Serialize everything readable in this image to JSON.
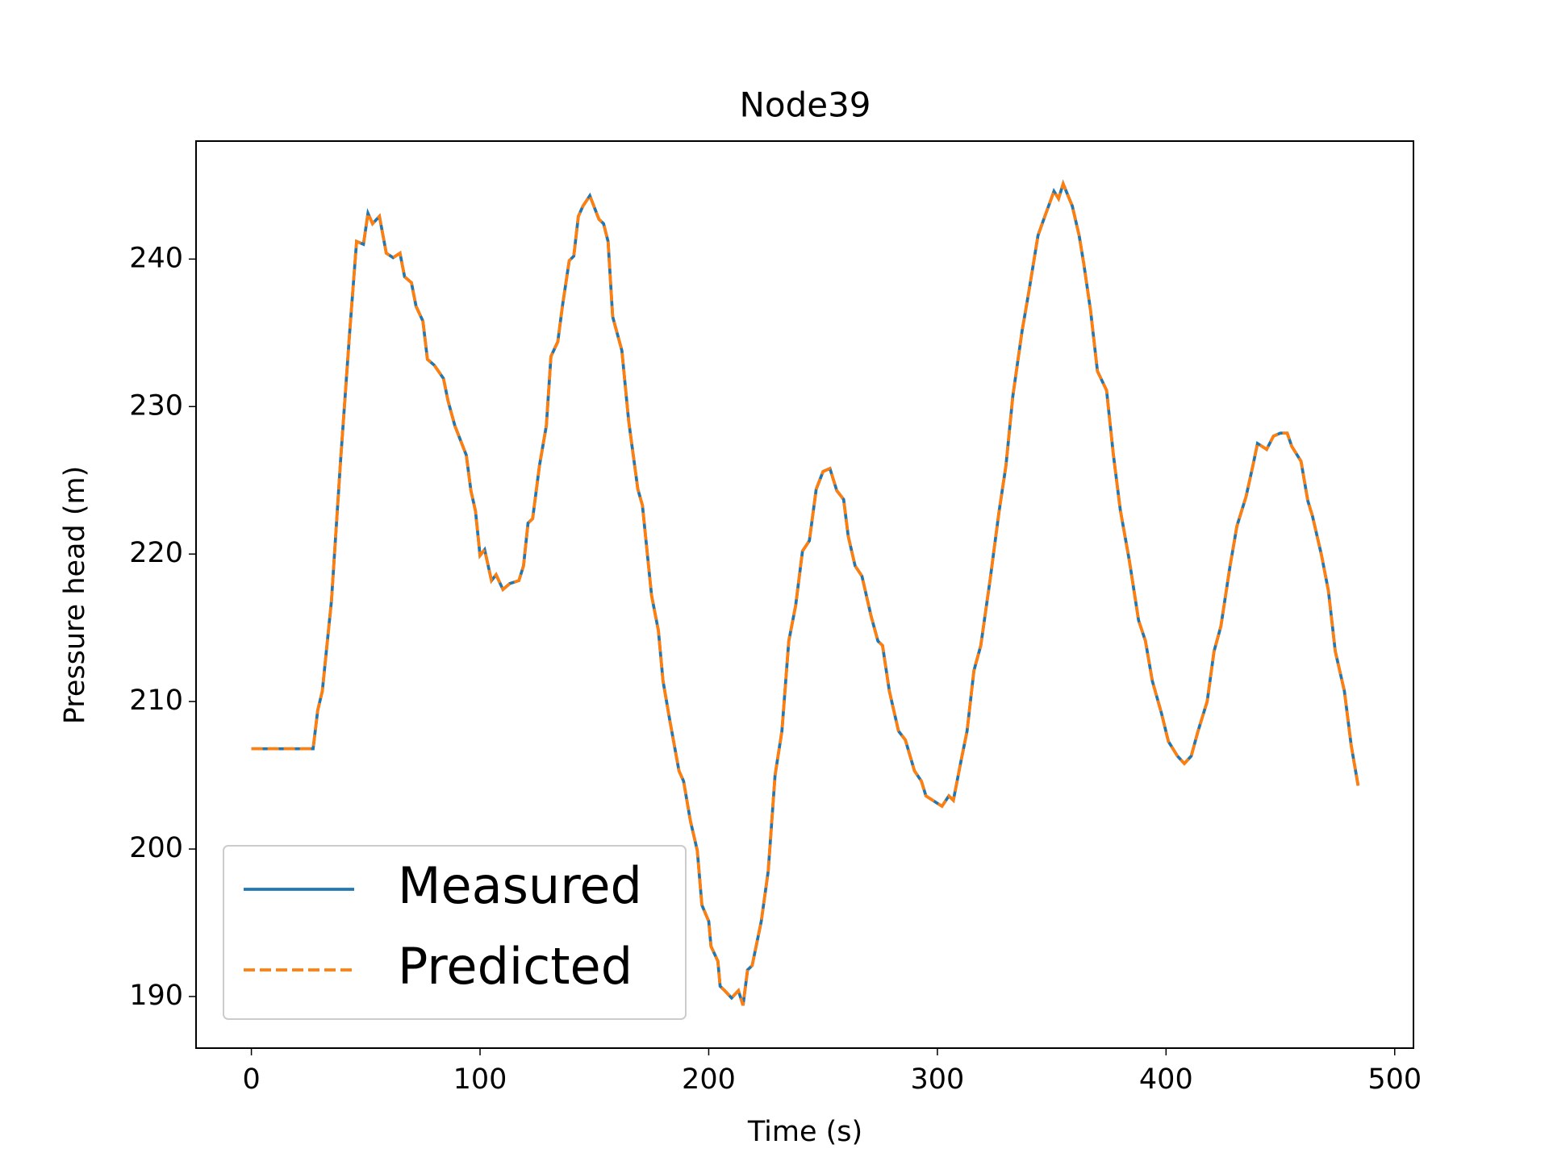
{
  "chart_data": {
    "type": "line",
    "title": "Node39",
    "xlabel": "Time (s)",
    "ylabel": "Pressure head (m)",
    "x": [
      0,
      27,
      29,
      31,
      35,
      39,
      43,
      46,
      49,
      51,
      53,
      56,
      59,
      62,
      65,
      67,
      70,
      72,
      75,
      77,
      80,
      84,
      86,
      89,
      94,
      96,
      98,
      100,
      102,
      105,
      107,
      110,
      113,
      117,
      119,
      121,
      123,
      126,
      129,
      131,
      134,
      136,
      139,
      141,
      143,
      145,
      148,
      152,
      154,
      156,
      158,
      162,
      165,
      169,
      171,
      175,
      178,
      180,
      183,
      187,
      189,
      192,
      195,
      197,
      200,
      201,
      204,
      205,
      207,
      210,
      213,
      215,
      217,
      219,
      223,
      226,
      229,
      232,
      235,
      238,
      241,
      244,
      247,
      250,
      253,
      256,
      259,
      261,
      264,
      267,
      271,
      274,
      276,
      279,
      283,
      286,
      290,
      293,
      295,
      298,
      302,
      305,
      307,
      310,
      313,
      316,
      319,
      323,
      327,
      330,
      333,
      337,
      340,
      344,
      347,
      351,
      353,
      355,
      359,
      362,
      364,
      367,
      370,
      374,
      377,
      380,
      384,
      388,
      391,
      394,
      398,
      401,
      405,
      408,
      411,
      414,
      418,
      421,
      424,
      428,
      431,
      435,
      438,
      440,
      444,
      447,
      450,
      453,
      455,
      459,
      462,
      464,
      468,
      471,
      474,
      478,
      481,
      484
    ],
    "series": [
      {
        "name": "Measured",
        "color": "#1f77b4",
        "dash": false,
        "values": [
          206.8,
          206.8,
          209.4,
          210.7,
          216.8,
          226.3,
          235.1,
          241.2,
          241.0,
          243.1,
          242.4,
          242.9,
          240.4,
          240.1,
          240.4,
          238.8,
          238.4,
          236.8,
          235.8,
          233.2,
          232.8,
          231.9,
          230.4,
          228.7,
          226.7,
          224.3,
          222.9,
          219.9,
          220.3,
          218.2,
          218.6,
          217.6,
          218.0,
          218.2,
          219.2,
          222.1,
          222.4,
          226.0,
          228.7,
          233.4,
          234.4,
          236.8,
          239.9,
          240.2,
          242.9,
          243.6,
          244.3,
          242.7,
          242.4,
          241.2,
          236.1,
          233.8,
          229.0,
          224.4,
          223.3,
          217.2,
          214.8,
          211.4,
          208.7,
          205.3,
          204.6,
          201.9,
          199.9,
          196.2,
          195.1,
          193.4,
          192.4,
          190.7,
          190.4,
          189.9,
          190.4,
          189.4,
          191.8,
          192.1,
          195.1,
          198.5,
          205.0,
          208.0,
          214.1,
          216.5,
          220.2,
          220.9,
          224.4,
          225.6,
          225.8,
          224.3,
          223.7,
          221.2,
          219.2,
          218.5,
          215.8,
          214.1,
          213.8,
          210.7,
          208.0,
          207.4,
          205.3,
          204.6,
          203.6,
          203.3,
          202.9,
          203.6,
          203.3,
          205.7,
          208.0,
          212.1,
          213.8,
          218.2,
          222.9,
          226.0,
          230.7,
          235.1,
          237.8,
          241.6,
          242.9,
          244.6,
          244.1,
          245.1,
          243.6,
          241.6,
          239.7,
          236.5,
          232.4,
          231.1,
          226.7,
          223.0,
          219.5,
          215.5,
          214.1,
          211.4,
          209.2,
          207.3,
          206.3,
          205.8,
          206.3,
          208.0,
          210.0,
          213.4,
          215.1,
          219.2,
          221.9,
          223.9,
          226.0,
          227.5,
          227.1,
          228.0,
          228.2,
          228.2,
          227.3,
          226.3,
          223.6,
          222.6,
          219.9,
          217.5,
          213.4,
          210.7,
          207.0,
          204.3
        ]
      },
      {
        "name": "Predicted",
        "color": "#ff7f0e",
        "dash": true,
        "values": [
          206.8,
          206.8,
          209.4,
          210.7,
          216.8,
          226.3,
          235.1,
          241.2,
          241.0,
          243.1,
          242.4,
          242.9,
          240.4,
          240.1,
          240.4,
          238.8,
          238.4,
          236.8,
          235.8,
          233.2,
          232.8,
          231.9,
          230.4,
          228.7,
          226.7,
          224.3,
          222.9,
          219.9,
          220.3,
          218.2,
          218.6,
          217.6,
          218.0,
          218.2,
          219.2,
          222.1,
          222.4,
          226.0,
          228.7,
          233.4,
          234.4,
          236.8,
          239.9,
          240.2,
          242.9,
          243.6,
          244.3,
          242.7,
          242.4,
          241.2,
          236.1,
          233.8,
          229.0,
          224.4,
          223.3,
          217.2,
          214.8,
          211.4,
          208.7,
          205.3,
          204.6,
          201.9,
          199.9,
          196.2,
          195.1,
          193.4,
          192.4,
          190.7,
          190.4,
          189.9,
          190.4,
          189.4,
          191.8,
          192.1,
          195.1,
          198.5,
          205.0,
          208.0,
          214.1,
          216.5,
          220.2,
          220.9,
          224.4,
          225.6,
          225.8,
          224.3,
          223.7,
          221.2,
          219.2,
          218.5,
          215.8,
          214.1,
          213.8,
          210.7,
          208.0,
          207.4,
          205.3,
          204.6,
          203.6,
          203.3,
          202.9,
          203.6,
          203.3,
          205.7,
          208.0,
          212.1,
          213.8,
          218.2,
          222.9,
          226.0,
          230.7,
          235.1,
          237.8,
          241.6,
          242.9,
          244.6,
          244.1,
          245.1,
          243.6,
          241.6,
          239.7,
          236.5,
          232.4,
          231.1,
          226.7,
          223.0,
          219.5,
          215.5,
          214.1,
          211.4,
          209.2,
          207.3,
          206.3,
          205.8,
          206.3,
          208.0,
          210.0,
          213.4,
          215.1,
          219.2,
          221.9,
          223.9,
          226.0,
          227.5,
          227.1,
          228.0,
          228.2,
          228.2,
          227.3,
          226.3,
          223.6,
          222.6,
          219.9,
          217.5,
          213.4,
          210.7,
          207.0,
          204.3
        ]
      }
    ],
    "xlim": [
      -24.2,
      508.2
    ],
    "xticks": [
      0,
      100,
      200,
      300,
      400,
      500
    ],
    "ylim": [
      186.5,
      248.0
    ],
    "yticks": [
      190,
      200,
      210,
      220,
      230,
      240
    ],
    "grid": false,
    "legend": "lower left"
  }
}
